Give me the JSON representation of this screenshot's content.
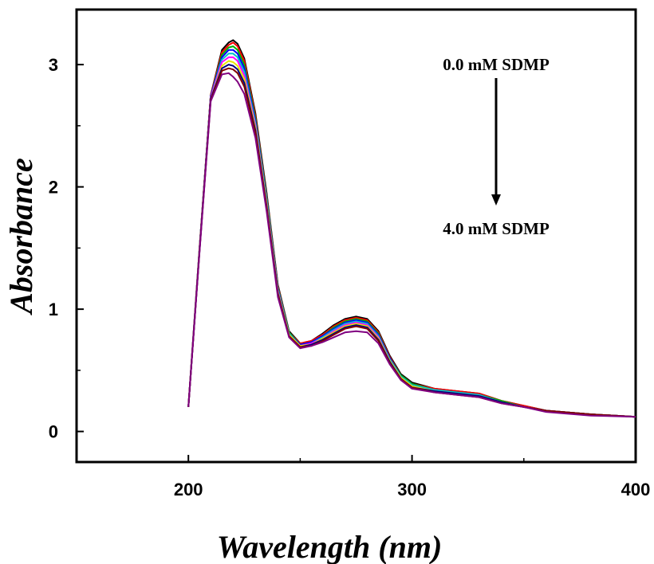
{
  "chart_data": {
    "type": "line",
    "xlabel": "Wavelength (nm)",
    "ylabel": "Absorbance",
    "xlim": [
      150,
      400
    ],
    "ylim": [
      -0.25,
      3.45
    ],
    "xticks": [
      200,
      300,
      400
    ],
    "yticks": [
      0,
      1,
      2,
      3
    ],
    "grid": false,
    "annotations": {
      "top": "0.0 mM SDMP",
      "bottom": "4.0 mM SDMP"
    },
    "x": [
      200,
      205,
      210,
      215,
      218,
      220,
      222,
      225,
      230,
      235,
      240,
      245,
      250,
      255,
      260,
      265,
      270,
      275,
      280,
      285,
      290,
      295,
      300,
      310,
      320,
      330,
      340,
      350,
      360,
      380,
      400
    ],
    "series": [
      {
        "color": "#000000",
        "values": [
          0.2,
          1.5,
          2.75,
          3.12,
          3.18,
          3.2,
          3.17,
          3.05,
          2.6,
          1.95,
          1.2,
          0.82,
          0.72,
          0.74,
          0.8,
          0.87,
          0.92,
          0.94,
          0.92,
          0.82,
          0.62,
          0.47,
          0.4,
          0.35,
          0.33,
          0.31,
          0.25,
          0.21,
          0.17,
          0.14,
          0.12
        ]
      },
      {
        "color": "#ff0000",
        "values": [
          0.2,
          1.5,
          2.75,
          3.1,
          3.16,
          3.18,
          3.15,
          3.03,
          2.58,
          1.93,
          1.19,
          0.81,
          0.72,
          0.74,
          0.79,
          0.86,
          0.91,
          0.93,
          0.91,
          0.81,
          0.61,
          0.46,
          0.39,
          0.35,
          0.33,
          0.31,
          0.25,
          0.21,
          0.17,
          0.14,
          0.12
        ]
      },
      {
        "color": "#00b000",
        "values": [
          0.2,
          1.5,
          2.74,
          3.08,
          3.14,
          3.15,
          3.12,
          3.0,
          2.56,
          1.92,
          1.18,
          0.81,
          0.71,
          0.73,
          0.78,
          0.85,
          0.9,
          0.92,
          0.9,
          0.8,
          0.6,
          0.46,
          0.39,
          0.34,
          0.32,
          0.3,
          0.25,
          0.2,
          0.17,
          0.14,
          0.12
        ]
      },
      {
        "color": "#0000ff",
        "values": [
          0.2,
          1.5,
          2.74,
          3.06,
          3.12,
          3.12,
          3.09,
          2.97,
          2.54,
          1.9,
          1.17,
          0.8,
          0.71,
          0.73,
          0.78,
          0.84,
          0.89,
          0.91,
          0.89,
          0.79,
          0.6,
          0.45,
          0.38,
          0.34,
          0.32,
          0.3,
          0.24,
          0.2,
          0.17,
          0.14,
          0.12
        ]
      },
      {
        "color": "#00c8c8",
        "values": [
          0.2,
          1.49,
          2.73,
          3.04,
          3.09,
          3.09,
          3.06,
          2.94,
          2.52,
          1.89,
          1.16,
          0.8,
          0.7,
          0.72,
          0.77,
          0.83,
          0.88,
          0.9,
          0.88,
          0.78,
          0.59,
          0.45,
          0.38,
          0.34,
          0.32,
          0.3,
          0.24,
          0.2,
          0.17,
          0.14,
          0.12
        ]
      },
      {
        "color": "#ff00ff",
        "values": [
          0.2,
          1.49,
          2.73,
          3.02,
          3.06,
          3.06,
          3.03,
          2.91,
          2.5,
          1.87,
          1.15,
          0.79,
          0.7,
          0.72,
          0.76,
          0.82,
          0.87,
          0.89,
          0.87,
          0.77,
          0.58,
          0.44,
          0.37,
          0.33,
          0.31,
          0.29,
          0.24,
          0.2,
          0.17,
          0.14,
          0.12
        ]
      },
      {
        "color": "#e6e600",
        "values": [
          0.2,
          1.49,
          2.72,
          2.99,
          3.03,
          3.02,
          2.99,
          2.88,
          2.48,
          1.86,
          1.14,
          0.79,
          0.7,
          0.71,
          0.76,
          0.81,
          0.86,
          0.88,
          0.86,
          0.76,
          0.58,
          0.44,
          0.37,
          0.33,
          0.31,
          0.29,
          0.24,
          0.2,
          0.17,
          0.14,
          0.12
        ]
      },
      {
        "color": "#000080",
        "values": [
          0.2,
          1.48,
          2.72,
          2.97,
          3.0,
          2.99,
          2.96,
          2.85,
          2.46,
          1.84,
          1.13,
          0.78,
          0.69,
          0.71,
          0.75,
          0.8,
          0.85,
          0.87,
          0.85,
          0.75,
          0.57,
          0.43,
          0.36,
          0.33,
          0.31,
          0.29,
          0.24,
          0.2,
          0.17,
          0.14,
          0.12
        ]
      },
      {
        "color": "#800000",
        "values": [
          0.2,
          1.48,
          2.71,
          2.95,
          2.97,
          2.96,
          2.93,
          2.82,
          2.44,
          1.83,
          1.12,
          0.78,
          0.69,
          0.7,
          0.74,
          0.79,
          0.84,
          0.86,
          0.84,
          0.74,
          0.56,
          0.43,
          0.36,
          0.32,
          0.3,
          0.28,
          0.23,
          0.2,
          0.17,
          0.14,
          0.12
        ]
      },
      {
        "color": "#800080",
        "values": [
          0.2,
          1.47,
          2.7,
          2.92,
          2.93,
          2.9,
          2.86,
          2.76,
          2.4,
          1.8,
          1.1,
          0.77,
          0.68,
          0.7,
          0.73,
          0.77,
          0.81,
          0.82,
          0.81,
          0.72,
          0.55,
          0.42,
          0.35,
          0.32,
          0.3,
          0.28,
          0.23,
          0.2,
          0.16,
          0.13,
          0.12
        ]
      }
    ]
  }
}
